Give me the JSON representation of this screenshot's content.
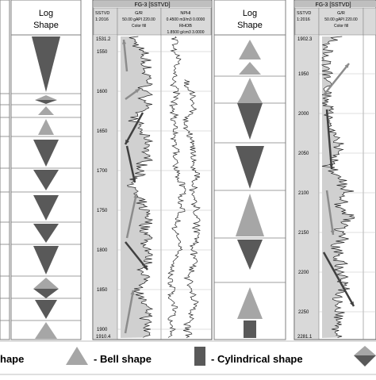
{
  "panels": {
    "left": {
      "header": "Log Shape"
    },
    "middle": {
      "well_title": "FG-3 [SSTVD]",
      "col_depth": "SSTVD",
      "col_depth_scale": "1:2016",
      "col_gr": "G/R",
      "col_gr_scale": "50.00 gAPI 220.00",
      "col_gr_fill": "Color fill",
      "col_nphi": "NPHI",
      "col_nphi_scale": "0.4500 m3/m3 0.0000",
      "col_rhob": "RHOB",
      "col_rhob_scale": "1.8500 g/cm3 3.0000",
      "depth_top": "1531.2",
      "depth_labels": [
        "1550",
        "1600",
        "1650",
        "1700",
        "1750",
        "1800",
        "1850",
        "1900"
      ],
      "depth_bottom": "1910.4",
      "log_shape_header": "Log Shape"
    },
    "right": {
      "well_title": "FG-3 [SSTVD]",
      "col_depth": "SSTVD",
      "col_depth_scale": "1:2016",
      "col_gr": "G/R",
      "col_gr_scale": "50.00 gAPI 220.00",
      "col_gr_fill": "Color fill",
      "depth_top": "1902.3",
      "depth_labels": [
        "1950",
        "2000",
        "2050",
        "2100",
        "2150",
        "2200",
        "2250"
      ],
      "depth_bottom": "2281.1"
    }
  },
  "legend": {
    "item1": "hape",
    "item2": "- Bell shape",
    "item3": "- Cylindrical shape"
  },
  "colors": {
    "light_gray": "#a6a6a6",
    "dark_gray": "#595959",
    "header_gray": "#7f7f7f"
  }
}
